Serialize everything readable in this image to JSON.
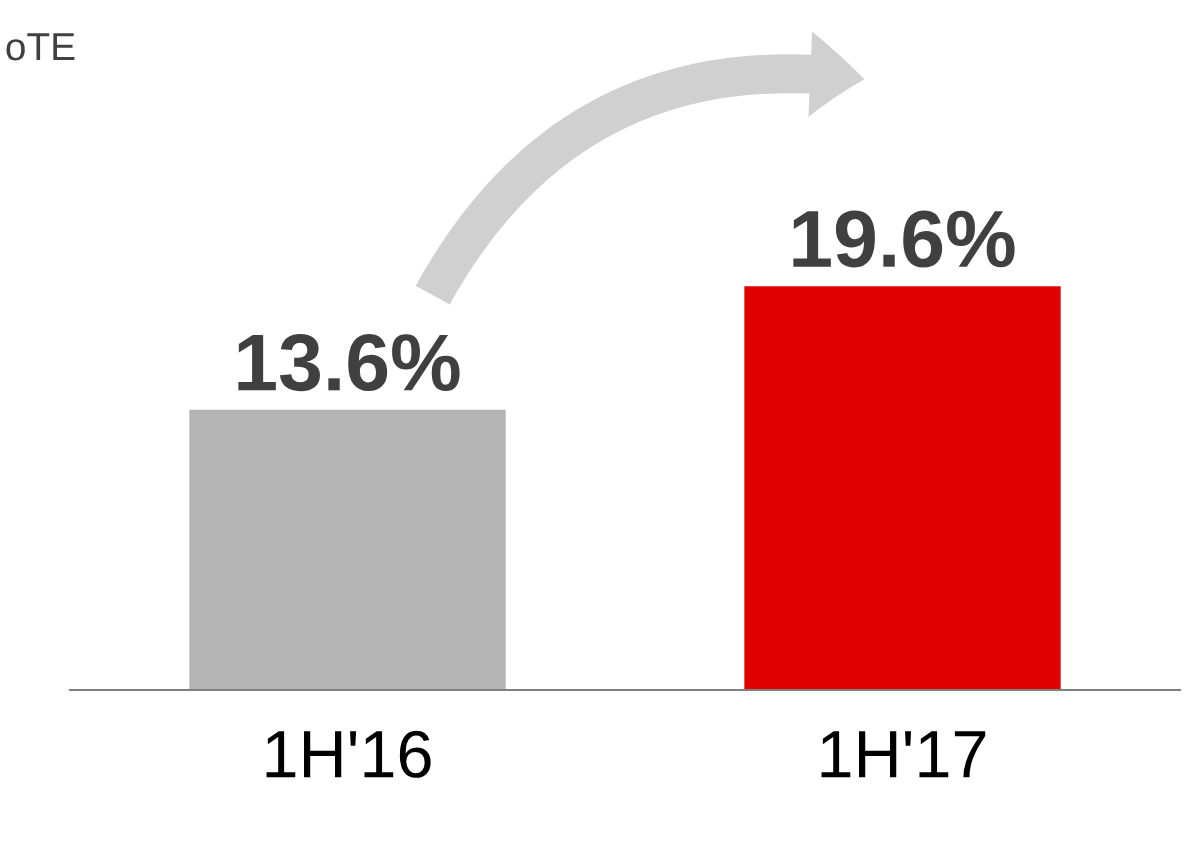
{
  "chart_data": {
    "type": "bar",
    "title": "oTE",
    "categories": [
      "1H'16",
      "1H'17"
    ],
    "values": [
      13.6,
      19.6
    ],
    "colors": [
      "#b4b4b4",
      "#e00000"
    ],
    "value_labels": [
      "13.6%",
      "19.6%"
    ],
    "grid": false,
    "legend": false
  }
}
